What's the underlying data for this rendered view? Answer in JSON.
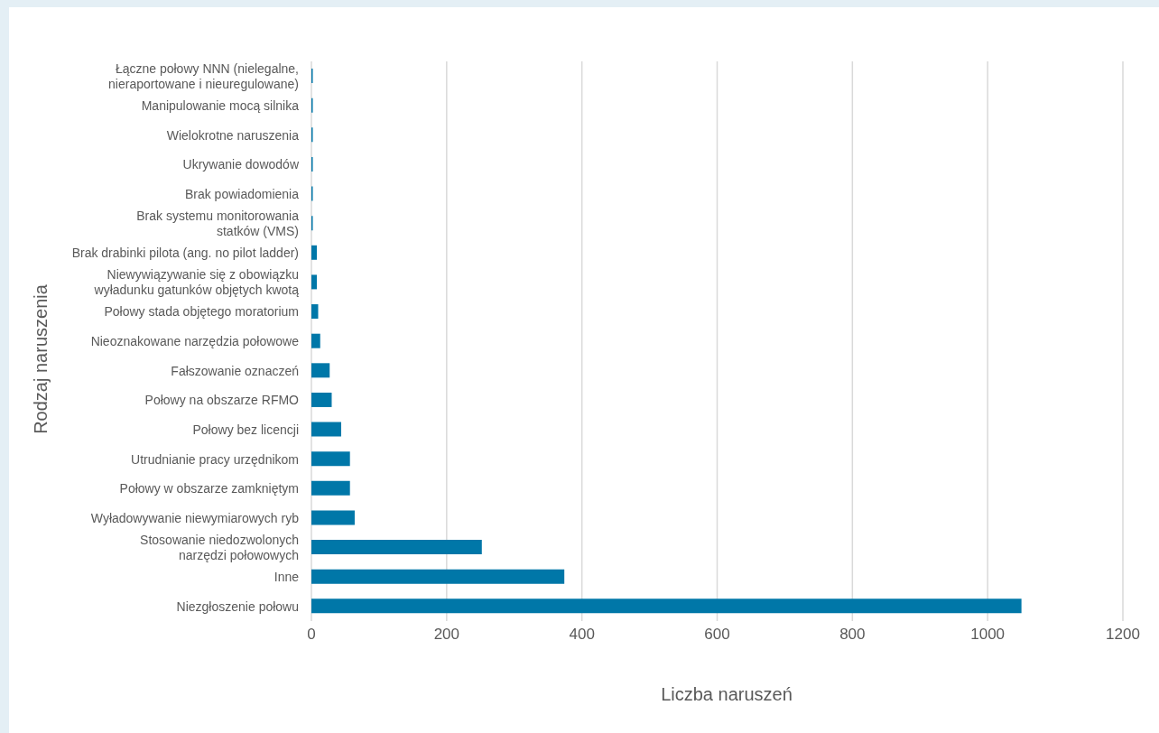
{
  "chart_data": {
    "type": "bar",
    "orientation": "horizontal",
    "xlabel": "Liczba naruszeń",
    "ylabel": "Rodzaj naruszenia",
    "categories": [
      "Łączne połowy NNN (nielegalne,\nnieraportowane i nieuregulowane)",
      "Manipulowanie mocą silnika",
      "Wielokrotne naruszenia",
      "Ukrywanie dowodów",
      "Brak powiadomienia",
      "Brak systemu monitorowania\nstatków (VMS)",
      "Brak drabinki pilota (ang. no pilot ladder)",
      "Niewywiązywanie się z obowiązku\nwyładunku gatunków objętych kwotą",
      "Połowy stada objętego moratorium",
      "Nieoznakowane narzędzia połowowe",
      "Fałszowanie oznaczeń",
      "Połowy na obszarze RFMO",
      "Połowy bez licencji",
      "Utrudnianie pracy urzędnikom",
      "Połowy w obszarze zamkniętym",
      "Wyładowywanie niewymiarowych ryb",
      "Stosowanie niedozwolonych\nnarzędzi połowowych",
      "Inne",
      "Niezgłoszenie połowu"
    ],
    "values": [
      2,
      2,
      2,
      2,
      2,
      2,
      8,
      8,
      10,
      13,
      27,
      30,
      44,
      57,
      57,
      64,
      252,
      374,
      1050
    ],
    "color": "#0077a8",
    "xlim": [
      0,
      1200
    ],
    "xticks": [
      0,
      200,
      400,
      600,
      800,
      1000,
      1200
    ],
    "grid": "x"
  }
}
